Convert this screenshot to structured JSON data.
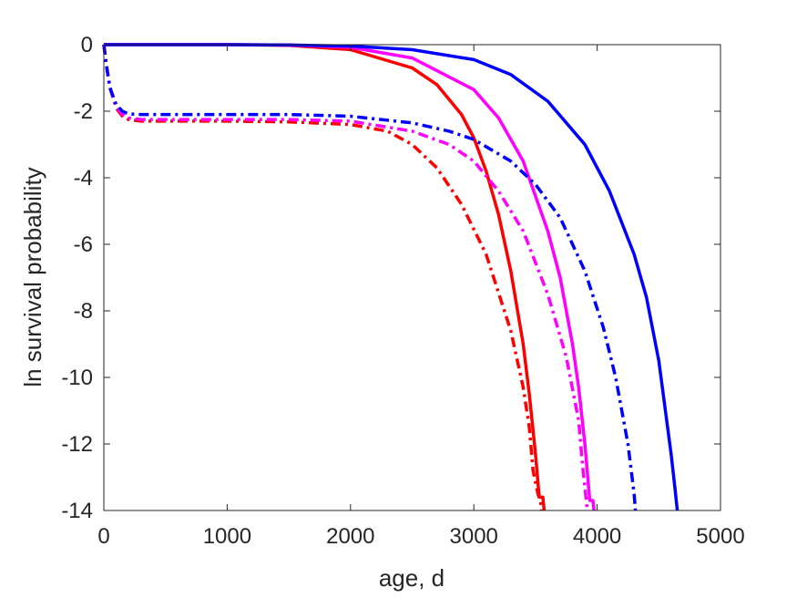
{
  "chart_data": {
    "type": "line",
    "title": "",
    "xlabel": "age, d",
    "ylabel": "ln survival probability",
    "xlim": [
      0,
      5000
    ],
    "ylim": [
      -14,
      0
    ],
    "xticks": [
      0,
      1000,
      2000,
      3000,
      4000,
      5000
    ],
    "yticks": [
      0,
      -2,
      -4,
      -6,
      -8,
      -10,
      -12,
      -14
    ],
    "xtick_labels": [
      "0",
      "1000",
      "2000",
      "3000",
      "4000",
      "5000"
    ],
    "ytick_labels": [
      "0",
      "-2",
      "-4",
      "-6",
      "-8",
      "-10",
      "-12",
      "-14"
    ],
    "grid": false,
    "legend": "none",
    "series": [
      {
        "color": "#ff0000",
        "style": "solid",
        "points": [
          [
            0,
            0
          ],
          [
            1000,
            0
          ],
          [
            1500,
            -0.02
          ],
          [
            2000,
            -0.15
          ],
          [
            2500,
            -0.7
          ],
          [
            2700,
            -1.2
          ],
          [
            2900,
            -2.1
          ],
          [
            3000,
            -2.8
          ],
          [
            3100,
            -3.8
          ],
          [
            3200,
            -5.1
          ],
          [
            3300,
            -6.8
          ],
          [
            3400,
            -9.0
          ],
          [
            3450,
            -10.5
          ],
          [
            3500,
            -12.3
          ],
          [
            3530,
            -13.6
          ],
          [
            3560,
            -13.6
          ],
          [
            3570,
            -14
          ]
        ]
      },
      {
        "color": "#ff00ff",
        "style": "solid",
        "points": [
          [
            0,
            0
          ],
          [
            1000,
            0
          ],
          [
            1500,
            -0.01
          ],
          [
            2000,
            -0.08
          ],
          [
            2500,
            -0.4
          ],
          [
            3000,
            -1.35
          ],
          [
            3200,
            -2.2
          ],
          [
            3400,
            -3.5
          ],
          [
            3600,
            -5.6
          ],
          [
            3700,
            -7.0
          ],
          [
            3800,
            -9.0
          ],
          [
            3850,
            -10.3
          ],
          [
            3900,
            -12.0
          ],
          [
            3940,
            -13.7
          ],
          [
            3965,
            -13.7
          ],
          [
            3975,
            -14
          ]
        ]
      },
      {
        "color": "#0000ff",
        "style": "solid",
        "points": [
          [
            0,
            0
          ],
          [
            1000,
            0
          ],
          [
            1500,
            -0.01
          ],
          [
            2000,
            -0.04
          ],
          [
            2500,
            -0.15
          ],
          [
            3000,
            -0.45
          ],
          [
            3300,
            -0.9
          ],
          [
            3600,
            -1.7
          ],
          [
            3900,
            -3.0
          ],
          [
            4100,
            -4.4
          ],
          [
            4300,
            -6.3
          ],
          [
            4400,
            -7.6
          ],
          [
            4500,
            -9.5
          ],
          [
            4600,
            -12.3
          ],
          [
            4630,
            -13.3
          ],
          [
            4650,
            -14
          ]
        ]
      },
      {
        "color": "#ff0000",
        "style": "dashdot",
        "points": [
          [
            0,
            0
          ],
          [
            20,
            -0.6
          ],
          [
            50,
            -1.3
          ],
          [
            100,
            -1.9
          ],
          [
            150,
            -2.15
          ],
          [
            200,
            -2.25
          ],
          [
            300,
            -2.3
          ],
          [
            1000,
            -2.3
          ],
          [
            1500,
            -2.32
          ],
          [
            2000,
            -2.4
          ],
          [
            2300,
            -2.6
          ],
          [
            2500,
            -3.0
          ],
          [
            2700,
            -3.7
          ],
          [
            2900,
            -4.8
          ],
          [
            3100,
            -6.3
          ],
          [
            3300,
            -8.6
          ],
          [
            3400,
            -10.3
          ],
          [
            3450,
            -11.5
          ],
          [
            3480,
            -12.8
          ],
          [
            3520,
            -13.5
          ],
          [
            3540,
            -13.7
          ],
          [
            3550,
            -14
          ]
        ]
      },
      {
        "color": "#ff00ff",
        "style": "dashdot",
        "points": [
          [
            0,
            0
          ],
          [
            20,
            -0.6
          ],
          [
            50,
            -1.3
          ],
          [
            100,
            -1.85
          ],
          [
            150,
            -2.1
          ],
          [
            200,
            -2.2
          ],
          [
            300,
            -2.25
          ],
          [
            1000,
            -2.25
          ],
          [
            1500,
            -2.25
          ],
          [
            2000,
            -2.3
          ],
          [
            2500,
            -2.6
          ],
          [
            2800,
            -3.0
          ],
          [
            3000,
            -3.5
          ],
          [
            3200,
            -4.4
          ],
          [
            3400,
            -5.6
          ],
          [
            3600,
            -7.5
          ],
          [
            3750,
            -9.4
          ],
          [
            3850,
            -11.3
          ],
          [
            3880,
            -12.6
          ],
          [
            3900,
            -13.3
          ],
          [
            3920,
            -14
          ]
        ]
      },
      {
        "color": "#0000ff",
        "style": "dashdot",
        "points": [
          [
            0,
            0
          ],
          [
            20,
            -0.6
          ],
          [
            50,
            -1.3
          ],
          [
            100,
            -1.8
          ],
          [
            150,
            -2.0
          ],
          [
            200,
            -2.08
          ],
          [
            300,
            -2.1
          ],
          [
            1000,
            -2.1
          ],
          [
            1500,
            -2.1
          ],
          [
            2000,
            -2.15
          ],
          [
            2500,
            -2.35
          ],
          [
            2800,
            -2.6
          ],
          [
            3000,
            -2.85
          ],
          [
            3300,
            -3.5
          ],
          [
            3500,
            -4.2
          ],
          [
            3700,
            -5.2
          ],
          [
            3900,
            -6.8
          ],
          [
            4050,
            -8.5
          ],
          [
            4150,
            -10.0
          ],
          [
            4250,
            -12.0
          ],
          [
            4300,
            -13.5
          ],
          [
            4310,
            -14
          ]
        ]
      }
    ]
  }
}
